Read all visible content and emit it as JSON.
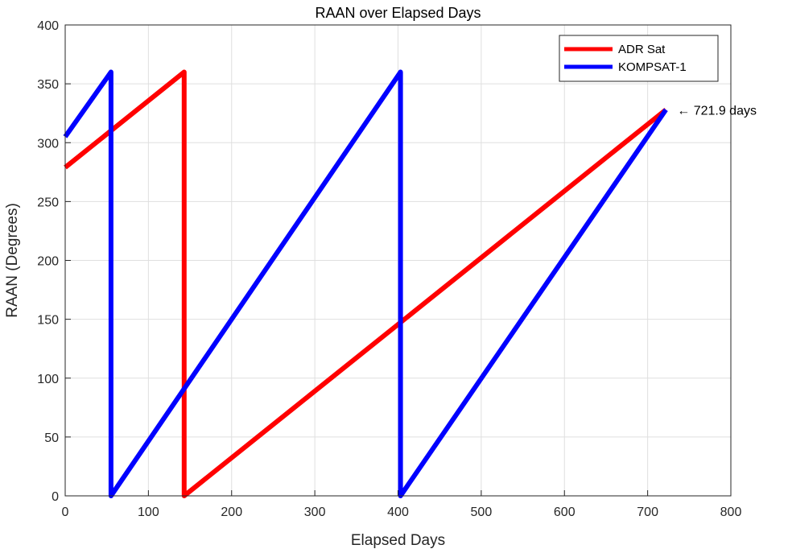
{
  "chart_data": {
    "type": "line",
    "title": "RAAN over Elapsed Days",
    "xlabel": "Elapsed Days",
    "ylabel": "RAAN (Degrees)",
    "xlim": [
      0,
      800
    ],
    "ylim": [
      0,
      400
    ],
    "xticks": [
      0,
      100,
      200,
      300,
      400,
      500,
      600,
      700,
      800
    ],
    "yticks": [
      0,
      50,
      100,
      150,
      200,
      250,
      300,
      350,
      400
    ],
    "grid": true,
    "legend_position": "top-right",
    "series": [
      {
        "name": "ADR Sat",
        "color": "#ff0000",
        "x": [
          0,
          143,
          143,
          721.9
        ],
        "y": [
          279,
          360,
          0,
          328
        ]
      },
      {
        "name": "KOMPSAT-1",
        "color": "#0000ff",
        "x": [
          0,
          55,
          55,
          403,
          403,
          721.9
        ],
        "y": [
          305,
          360,
          0,
          360,
          0,
          328
        ]
      }
    ],
    "annotations": [
      {
        "text": "← 721.9 days",
        "x": 721.9,
        "y": 328
      }
    ]
  }
}
